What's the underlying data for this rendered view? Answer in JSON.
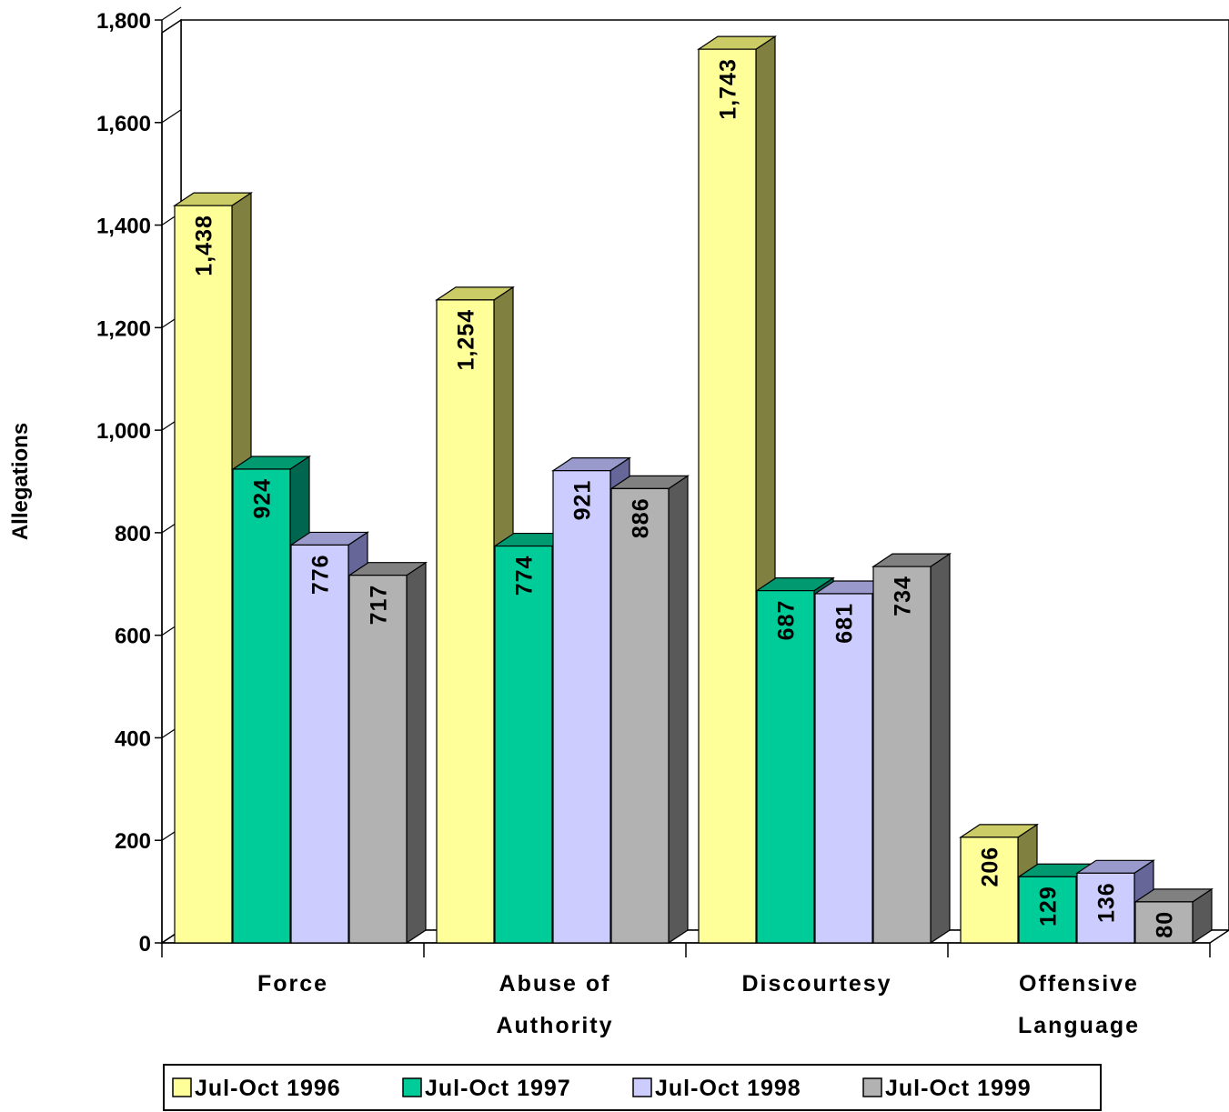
{
  "chart_data": {
    "type": "bar",
    "categories": [
      [
        "Force"
      ],
      [
        "Abuse of",
        "Authority"
      ],
      [
        "Discourtesy"
      ],
      [
        "Offensive",
        "Language"
      ]
    ],
    "series": [
      {
        "name": "Jul-Oct 1996",
        "values": [
          1438,
          1254,
          1743,
          206
        ],
        "labels": [
          "1,438",
          "1,254",
          "1,743",
          "206"
        ],
        "color": "#FFFF99",
        "top_color": "#CCCC66",
        "side_color": "#808040"
      },
      {
        "name": "Jul-Oct 1997",
        "values": [
          924,
          774,
          687,
          129
        ],
        "labels": [
          "924",
          "774",
          "687",
          "129"
        ],
        "color": "#00CC99",
        "top_color": "#009970",
        "side_color": "#006650"
      },
      {
        "name": "Jul-Oct 1998",
        "values": [
          776,
          921,
          681,
          136
        ],
        "labels": [
          "776",
          "921",
          "681",
          "136"
        ],
        "color": "#CCCCFF",
        "top_color": "#9999CC",
        "side_color": "#666699"
      },
      {
        "name": "Jul-Oct 1999",
        "values": [
          717,
          886,
          734,
          80
        ],
        "labels": [
          "717",
          "886",
          "734",
          "80"
        ],
        "color": "#B2B2B2",
        "top_color": "#808080",
        "side_color": "#595959"
      }
    ],
    "title": "",
    "xlabel": "",
    "ylabel": "Allegations",
    "ylim": [
      0,
      1800
    ],
    "yticks": [
      0,
      200,
      400,
      600,
      800,
      1000,
      1200,
      1400,
      1600,
      1800
    ],
    "ytick_labels": [
      "0",
      "200",
      "400",
      "600",
      "800",
      "1,000",
      "1,200",
      "1,400",
      "1,600",
      "1,800"
    ],
    "grid": false,
    "legend_position": "bottom"
  }
}
